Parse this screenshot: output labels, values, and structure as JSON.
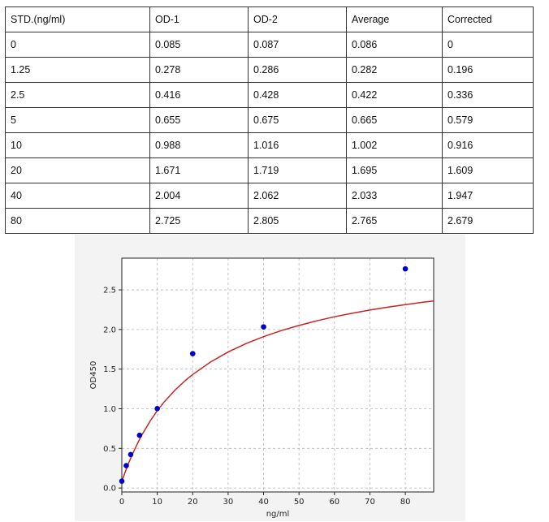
{
  "table": {
    "headers": [
      "STD.(ng/ml)",
      "OD-1",
      "OD-2",
      "Average",
      "Corrected"
    ],
    "rows": [
      [
        "0",
        "0.085",
        "0.087",
        "0.086",
        "0"
      ],
      [
        "1.25",
        "0.278",
        "0.286",
        "0.282",
        "0.196"
      ],
      [
        "2.5",
        "0.416",
        "0.428",
        "0.422",
        "0.336"
      ],
      [
        "5",
        "0.655",
        "0.675",
        "0.665",
        "0.579"
      ],
      [
        "10",
        "0.988",
        "1.016",
        "1.002",
        "0.916"
      ],
      [
        "20",
        "1.671",
        "1.719",
        "1.695",
        "1.609"
      ],
      [
        "40",
        "2.004",
        "2.062",
        "2.033",
        "1.947"
      ],
      [
        "80",
        "2.725",
        "2.805",
        "2.765",
        "2.679"
      ]
    ]
  },
  "chart_data": {
    "type": "scatter",
    "title": "",
    "xlabel": "ng/ml",
    "ylabel": "OD450",
    "xlim": [
      0,
      88
    ],
    "ylim": [
      -0.05,
      2.9
    ],
    "x_ticks": [
      0,
      10,
      20,
      30,
      40,
      50,
      60,
      70,
      80
    ],
    "y_ticks": [
      0.0,
      0.5,
      1.0,
      1.5,
      2.0,
      2.5
    ],
    "x_tick_labels": [
      "0",
      "10",
      "20",
      "30",
      "40",
      "50",
      "60",
      "70",
      "80"
    ],
    "y_tick_labels": [
      "0.0",
      "0.5",
      "1.0",
      "1.5",
      "2.0",
      "2.5"
    ],
    "grid": true,
    "series": [
      {
        "type": "scatter",
        "x": [
          0,
          1.25,
          2.5,
          5,
          10,
          20,
          40,
          80
        ],
        "y": [
          0.086,
          0.282,
          0.422,
          0.665,
          1.002,
          1.695,
          2.033,
          2.765
        ],
        "color": "#0000cc"
      },
      {
        "type": "line",
        "x": [
          0,
          1,
          2,
          3,
          4,
          5,
          6,
          8,
          10,
          12,
          15,
          18,
          20,
          25,
          30,
          35,
          40,
          45,
          50,
          55,
          60,
          65,
          70,
          75,
          80,
          85,
          88
        ],
        "y": [
          0.086,
          0.209,
          0.322,
          0.427,
          0.523,
          0.613,
          0.696,
          0.845,
          0.975,
          1.089,
          1.235,
          1.359,
          1.432,
          1.589,
          1.716,
          1.821,
          1.91,
          1.986,
          2.051,
          2.109,
          2.16,
          2.205,
          2.245,
          2.281,
          2.314,
          2.344,
          2.36
        ],
        "color": "#cc2222"
      }
    ]
  }
}
